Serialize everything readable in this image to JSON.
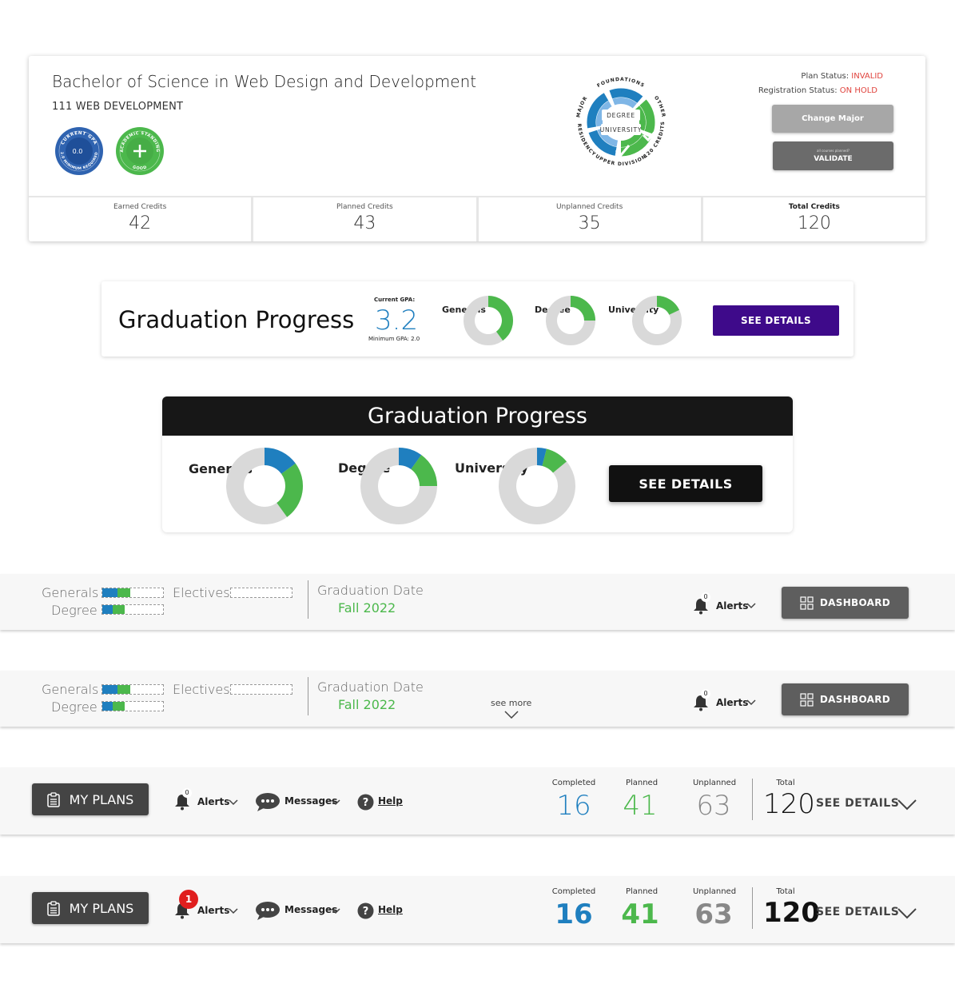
{
  "degree_card": {
    "title": "Bachelor of Science in Web Design and Development",
    "program_code": "111 WEB DEVELOPMENT",
    "gpa_badge": {
      "ring_text": "CURRENT GPA",
      "bottom_text": "(2.0 MINIMUM REQUIRED)",
      "value": "0.0"
    },
    "standing_badge": {
      "ring_text": "ACADEMIC STANDING",
      "bottom_text": "GOOD"
    },
    "wheel": {
      "center_top": "DEGREE",
      "center_bottom": "UNIVERSITY",
      "segments": [
        "FOUNDATIONS",
        "OTHER",
        "RESIDENCY",
        "UPPER DIVISION",
        "120 CREDITS",
        "MAJOR"
      ]
    },
    "plan_status_label": "Plan Status:",
    "plan_status_value": "INVALID",
    "registration_status_label": "Registration Status:",
    "registration_status_value": "ON HOLD",
    "change_major_label": "Change Major",
    "validate_note": "all courses planned?",
    "validate_label": "VALIDATE",
    "credits": [
      {
        "label": "Earned Credits",
        "value": "42"
      },
      {
        "label": "Planned Credits",
        "value": "43"
      },
      {
        "label": "Unplanned Credits",
        "value": "35"
      },
      {
        "label": "Total Credits",
        "value": "120"
      }
    ],
    "colors": {
      "blue": "#1f7fbf",
      "green": "#4cb84c",
      "status_red": "#e0433d"
    }
  },
  "grad_progress_compact": {
    "title": "Graduation Progress",
    "current_gpa_label": "Current GPA:",
    "current_gpa_value": "3.2",
    "minimum_gpa_label": "Minimum GPA: 2.0",
    "donuts": [
      {
        "label": "Generals",
        "completed": 0.0,
        "planned": 0.4
      },
      {
        "label": "Degree",
        "completed": 0.0,
        "planned": 0.25
      },
      {
        "label": "University",
        "completed": 0.0,
        "planned": 0.18
      }
    ],
    "see_details_label": "SEE DETAILS",
    "button_color": "#3e0a8a"
  },
  "grad_progress_large": {
    "title": "Graduation Progress",
    "donuts": [
      {
        "label": "Generals",
        "completed": 0.15,
        "planned": 0.25
      },
      {
        "label": "Degree",
        "completed": 0.1,
        "planned": 0.15
      },
      {
        "label": "University",
        "completed": 0.04,
        "planned": 0.1
      }
    ],
    "see_details_label": "SEE DETAILS"
  },
  "status_bar_1": {
    "generals_label": "Generals",
    "degree_label": "Degree",
    "electives_label": "Electives",
    "graduation_date_label": "Graduation Date",
    "graduation_date_value": "Fall 2022",
    "alerts_count": "0",
    "alerts_label": "Alerts",
    "dashboard_label": "DASHBOARD"
  },
  "status_bar_2": {
    "generals_label": "Generals",
    "degree_label": "Degree",
    "electives_label": "Electives",
    "graduation_date_label": "Graduation Date",
    "graduation_date_value": "Fall 2022",
    "see_more_label": "see more",
    "alerts_count": "0",
    "alerts_label": "Alerts",
    "dashboard_label": "DASHBOARD"
  },
  "plans_bar_1": {
    "my_plans_label": "MY PLANS",
    "alerts_count": "0",
    "alerts_label": "Alerts",
    "messages_label": "Messages",
    "help_label": "Help",
    "stats": [
      {
        "label": "Completed",
        "value": "16"
      },
      {
        "label": "Planned",
        "value": "41"
      },
      {
        "label": "Unplanned",
        "value": "63"
      }
    ],
    "total_label": "Total",
    "total_value": "120",
    "see_details_label": "SEE DETAILS"
  },
  "plans_bar_2": {
    "my_plans_label": "MY PLANS",
    "alerts_count": "1",
    "alerts_label": "Alerts",
    "messages_label": "Messages",
    "help_label": "Help",
    "stats": [
      {
        "label": "Completed",
        "value": "16"
      },
      {
        "label": "Planned",
        "value": "41"
      },
      {
        "label": "Unplanned",
        "value": "63"
      }
    ],
    "total_label": "Total",
    "total_value": "120",
    "see_details_label": "SEE DETAILS"
  }
}
